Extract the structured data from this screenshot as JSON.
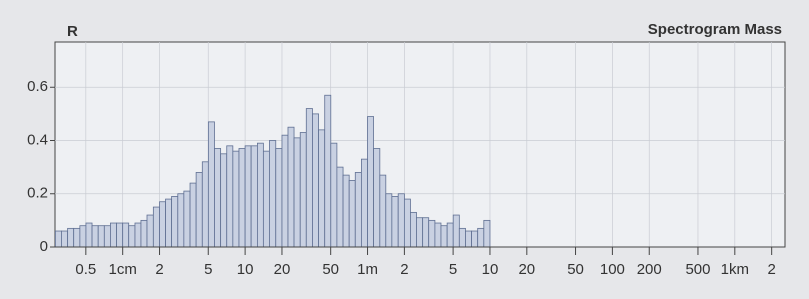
{
  "chart_data": {
    "type": "histogram",
    "title": "Spectrogram Mass",
    "y_label": "R",
    "x_scale": "log",
    "grid": true,
    "color": "#c9d1e2",
    "edge_color": "#5f6f92",
    "bins": [
      0.282,
      0.316,
      0.355,
      0.398,
      0.447,
      0.501,
      0.562,
      0.631,
      0.708,
      0.794,
      0.891,
      1,
      1.12,
      1.26,
      1.41,
      1.58,
      1.78,
      2,
      2.24,
      2.51,
      2.82,
      3.16,
      3.55,
      3.98,
      4.47,
      5.01,
      5.62,
      6.31,
      7.08,
      7.94,
      8.91,
      10,
      11.2,
      12.6,
      14.1,
      15.8,
      17.8,
      20,
      22.4,
      25.1,
      28.2,
      31.6,
      35.5,
      39.8,
      44.7,
      50.1,
      56.2,
      63.1,
      70.8,
      79.4,
      89.1,
      100,
      112,
      126,
      141,
      158,
      178,
      200,
      224,
      251,
      282,
      316,
      355,
      398,
      447,
      501,
      562,
      631,
      708,
      794,
      891,
      1000
    ],
    "values": [
      0.06,
      0.06,
      0.07,
      0.07,
      0.08,
      0.09,
      0.08,
      0.08,
      0.08,
      0.09,
      0.09,
      0.09,
      0.08,
      0.09,
      0.1,
      0.12,
      0.15,
      0.17,
      0.18,
      0.19,
      0.2,
      0.21,
      0.24,
      0.28,
      0.32,
      0.47,
      0.37,
      0.35,
      0.38,
      0.36,
      0.37,
      0.38,
      0.38,
      0.39,
      0.36,
      0.4,
      0.37,
      0.42,
      0.45,
      0.41,
      0.43,
      0.52,
      0.5,
      0.44,
      0.57,
      0.39,
      0.3,
      0.27,
      0.25,
      0.28,
      0.33,
      0.49,
      0.37,
      0.27,
      0.2,
      0.19,
      0.2,
      0.18,
      0.13,
      0.11,
      0.11,
      0.1,
      0.09,
      0.08,
      0.09,
      0.12,
      0.07,
      0.06,
      0.06,
      0.07,
      0.1
    ],
    "xlim": [
      0.28,
      257000
    ],
    "xticks": [
      0.5,
      {
        "value": 1,
        "label": "1cm"
      },
      2,
      5,
      10,
      20,
      50,
      {
        "value": 100,
        "label": "1m"
      },
      {
        "value": 200,
        "label": "2"
      },
      {
        "value": 500,
        "label": "5"
      },
      {
        "value": 1000,
        "label": "10"
      },
      {
        "value": 2000,
        "label": "20"
      },
      {
        "value": 5000,
        "label": "50"
      },
      {
        "value": 10000,
        "label": "100"
      },
      {
        "value": 20000,
        "label": "200"
      },
      {
        "value": 50000,
        "label": "500"
      },
      {
        "value": 100000,
        "label": "1km"
      },
      {
        "value": 200000,
        "label": "2"
      }
    ],
    "ylim": [
      0,
      0.77
    ],
    "yticks": [
      0,
      0.2,
      0.4,
      0.6
    ]
  }
}
